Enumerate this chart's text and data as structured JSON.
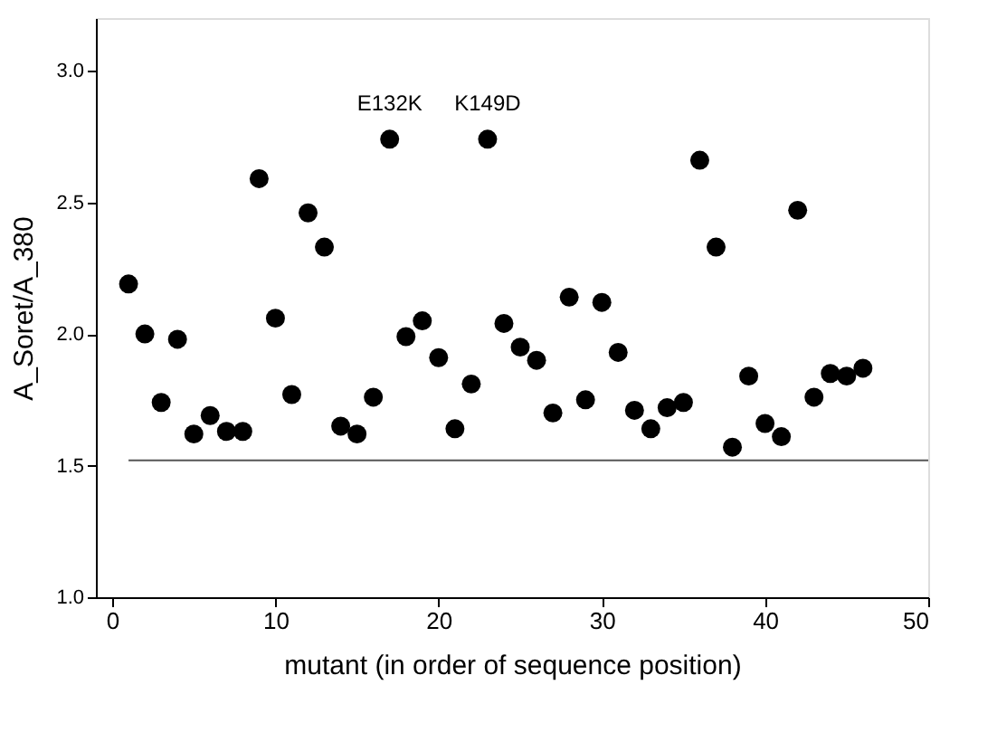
{
  "chart_data": {
    "type": "scatter",
    "xlabel": "mutant  (in order of sequence position)",
    "ylabel": "A_Soret/A_380",
    "x": [
      1,
      2,
      3,
      4,
      5,
      6,
      7,
      8,
      9,
      10,
      11,
      12,
      13,
      14,
      15,
      16,
      17,
      18,
      19,
      20,
      21,
      22,
      23,
      24,
      25,
      26,
      27,
      28,
      29,
      30,
      31,
      32,
      33,
      34,
      35,
      36,
      37,
      38,
      39,
      40,
      41,
      42,
      43,
      44,
      45,
      46
    ],
    "series": [
      {
        "color": "#000000",
        "values": [
          2.19,
          2.0,
          1.74,
          1.98,
          1.62,
          1.69,
          1.63,
          1.63,
          2.59,
          2.06,
          1.77,
          2.46,
          2.33,
          1.65,
          1.62,
          1.76,
          2.74,
          1.99,
          2.05,
          1.91,
          1.64,
          1.81,
          2.74,
          2.04,
          1.95,
          1.9,
          1.7,
          2.14,
          1.75,
          2.12,
          1.93,
          1.71,
          1.64,
          1.72,
          1.74,
          2.66,
          2.33,
          1.57,
          1.84,
          1.66,
          1.61,
          2.47,
          1.76,
          1.85,
          1.84,
          1.87
        ]
      }
    ],
    "xlim": [
      -1,
      50
    ],
    "xticks": [
      0,
      10,
      20,
      30,
      40,
      50
    ],
    "ylim": [
      1.0,
      3.2
    ],
    "yticks": [
      {
        "value": 1.0,
        "label": "1.0"
      },
      {
        "value": 1.5,
        "label": "1.5"
      },
      {
        "value": 2.0,
        "label": "2.0"
      },
      {
        "value": 2.5,
        "label": "2.5"
      },
      {
        "value": 3.0,
        "label": "3.0"
      }
    ],
    "ref_lines": [
      {
        "axis": "y",
        "value": 1.52,
        "color": "#555555"
      }
    ],
    "annotations": [
      {
        "text": "E132K",
        "x": 17,
        "y": 2.74
      },
      {
        "text": "K149D",
        "x": 23,
        "y": 2.74
      }
    ],
    "marker": "circle"
  }
}
